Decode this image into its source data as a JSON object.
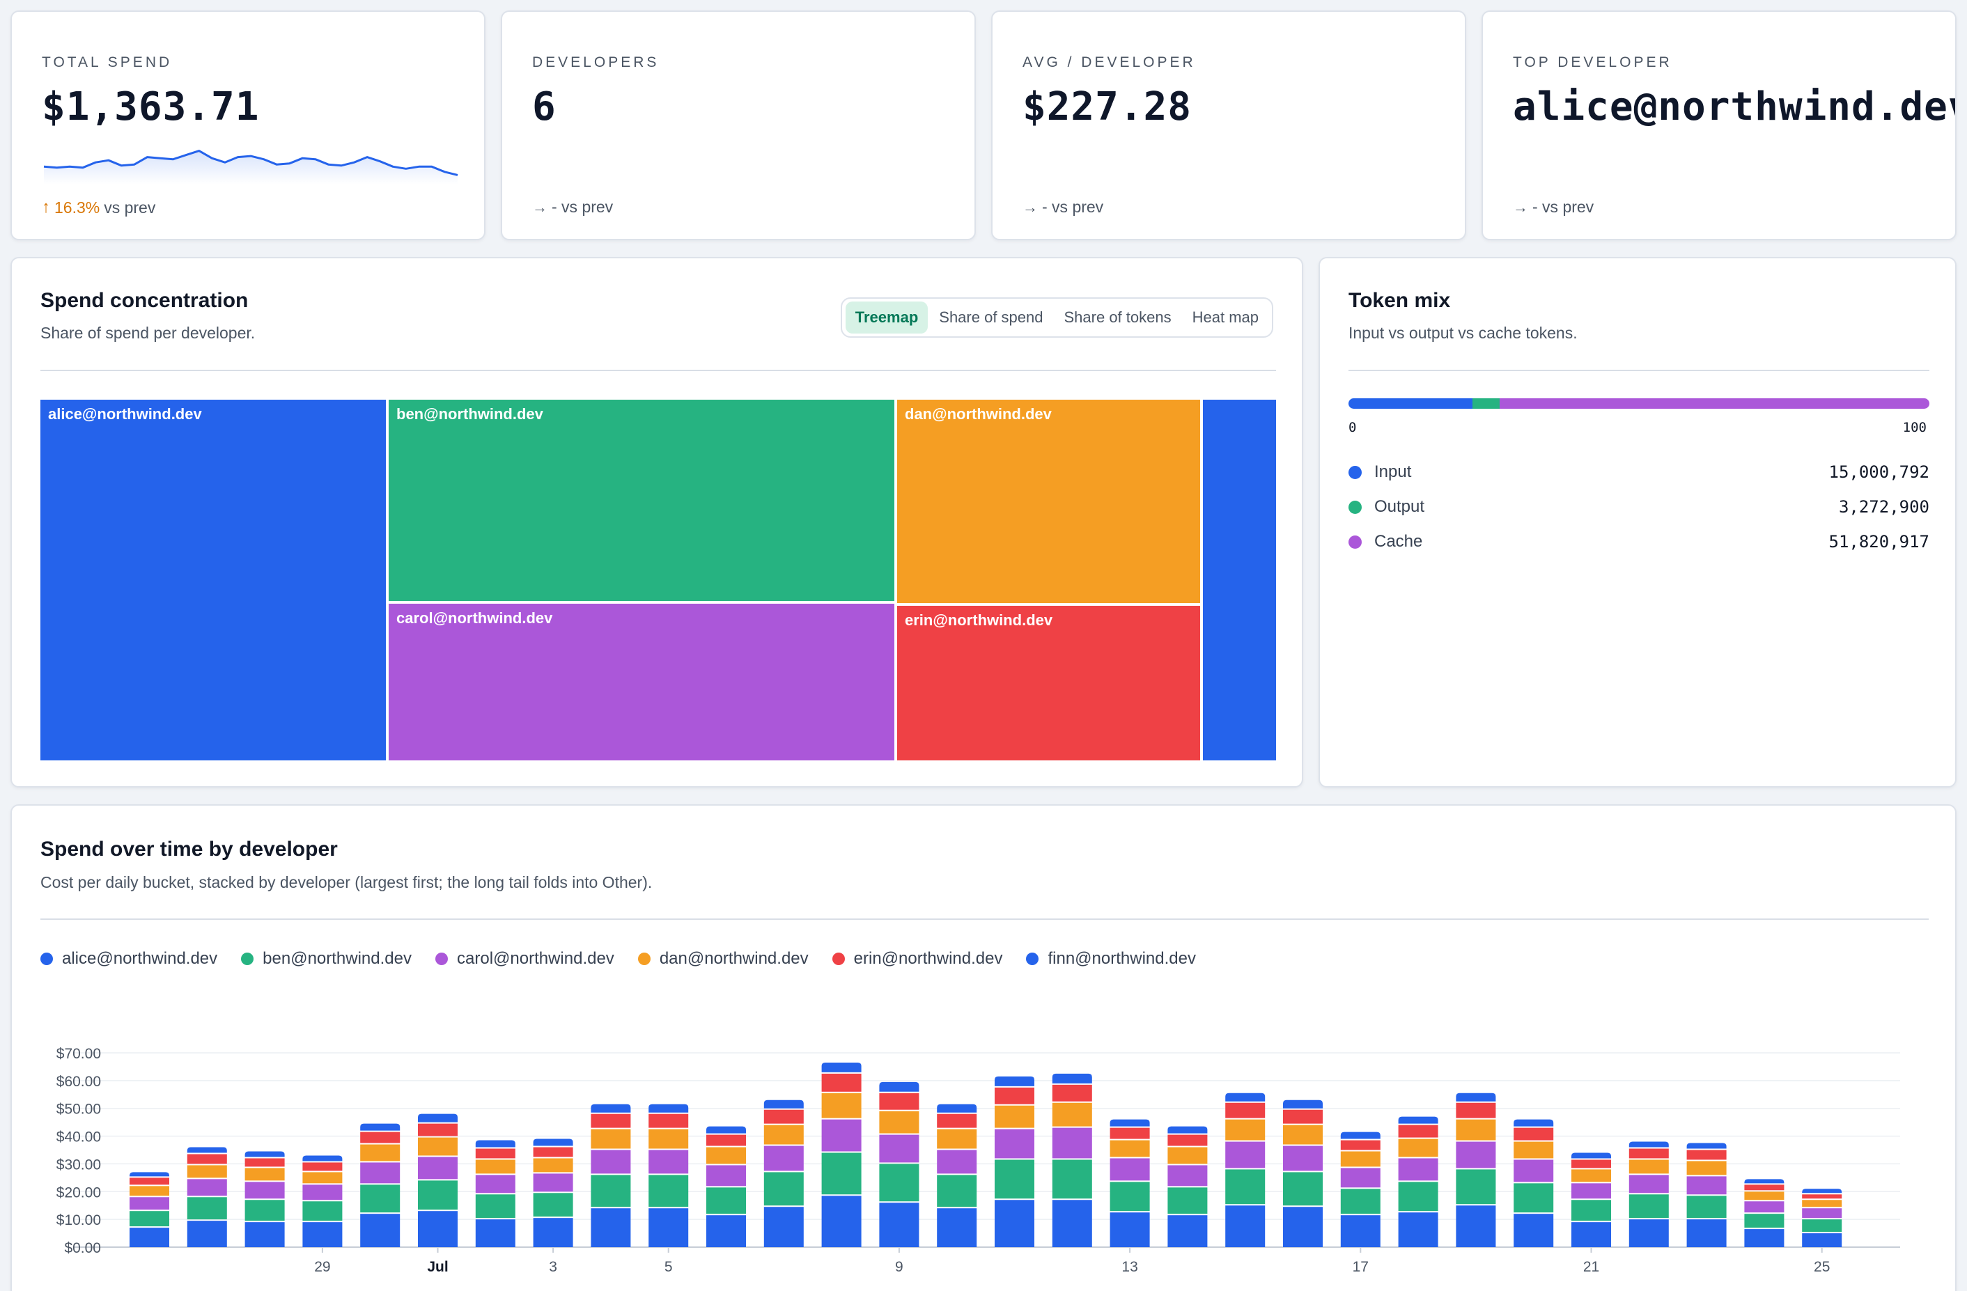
{
  "kpis": [
    {
      "label": "TOTAL SPEND",
      "value": "$1,363.71",
      "delta_pct": "16.3%",
      "delta_text": "vs prev",
      "trend": "up"
    },
    {
      "label": "DEVELOPERS",
      "value": "6",
      "delta_text": "- vs prev",
      "trend": "flat"
    },
    {
      "label": "AVG / DEVELOPER",
      "value": "$227.28",
      "delta_text": "- vs prev",
      "trend": "flat"
    },
    {
      "label": "TOP DEVELOPER",
      "value": "alice@northwind.dev",
      "delta_text": "- vs prev",
      "trend": "flat"
    }
  ],
  "sparkline": [
    52,
    51,
    52,
    51,
    56,
    58,
    53,
    54,
    61,
    60,
    59,
    63,
    67,
    60,
    56,
    61,
    62,
    59,
    54,
    55,
    60,
    59,
    54,
    53,
    56,
    61,
    57,
    52,
    50,
    52,
    52,
    47,
    44
  ],
  "concentration": {
    "title": "Spend concentration",
    "subtitle": "Share of spend per developer.",
    "tabs": [
      "Treemap",
      "Share of spend",
      "Share of tokens",
      "Heat map"
    ],
    "active_tab": "Treemap",
    "cells": [
      {
        "label": "alice@northwind.dev",
        "color": "#2563eb"
      },
      {
        "label": "ben@northwind.dev",
        "color": "#26b381"
      },
      {
        "label": "carol@northwind.dev",
        "color": "#ab57d9"
      },
      {
        "label": "dan@northwind.dev",
        "color": "#f59e23"
      },
      {
        "label": "erin@northwind.dev",
        "color": "#ef4145"
      },
      {
        "label": "",
        "color": "#2563eb"
      }
    ]
  },
  "token_mix": {
    "title": "Token mix",
    "subtitle": "Input vs output vs cache tokens.",
    "axis_min": "0",
    "axis_max": "100",
    "rows": [
      {
        "name": "Input",
        "value": "15,000,792",
        "amount": 15000792,
        "color": "#2563eb"
      },
      {
        "name": "Output",
        "value": "3,272,900",
        "amount": 3272900,
        "color": "#26b381"
      },
      {
        "name": "Cache",
        "value": "51,820,917",
        "amount": 51820917,
        "color": "#ab57d9"
      }
    ]
  },
  "spend_over_time": {
    "title": "Spend over time by developer",
    "subtitle": "Cost per daily bucket, stacked by developer (largest first; the long tail folds into Other)."
  },
  "chart_data": {
    "type": "bar",
    "stacked": true,
    "categories": [
      "Jun 26",
      "Jun 27",
      "Jun 28",
      "Jun 29",
      "Jun 30",
      "Jul 1",
      "Jul 2",
      "Jul 3",
      "Jul 4",
      "Jul 5",
      "Jul 6",
      "Jul 7",
      "Jul 8",
      "Jul 9",
      "Jul 10",
      "Jul 11",
      "Jul 12",
      "Jul 13",
      "Jul 14",
      "Jul 15",
      "Jul 16",
      "Jul 17",
      "Jul 18",
      "Jul 19",
      "Jul 20",
      "Jul 21",
      "Jul 22",
      "Jul 23",
      "Jul 24",
      "Jul 25"
    ],
    "x_tick_labels": [
      {
        "index": 3,
        "label": "29",
        "bold": false
      },
      {
        "index": 5,
        "label": "Jul",
        "bold": true
      },
      {
        "index": 7,
        "label": "3",
        "bold": false
      },
      {
        "index": 9,
        "label": "5",
        "bold": false
      },
      {
        "index": 13,
        "label": "9",
        "bold": false
      },
      {
        "index": 17,
        "label": "13",
        "bold": false
      },
      {
        "index": 21,
        "label": "17",
        "bold": false
      },
      {
        "index": 25,
        "label": "21",
        "bold": false
      },
      {
        "index": 29,
        "label": "25",
        "bold": false
      }
    ],
    "y_ticks": [
      "$0.00",
      "$10.00",
      "$20.00",
      "$30.00",
      "$40.00",
      "$50.00",
      "$60.00",
      "$70.00"
    ],
    "ylim": [
      0,
      70
    ],
    "grid": true,
    "legend_position": "top-left",
    "series": [
      {
        "name": "alice@northwind.dev",
        "color": "#2563eb",
        "values": [
          7.5,
          10.0,
          9.5,
          9.5,
          12.5,
          13.5,
          10.5,
          11.0,
          14.5,
          14.5,
          12.0,
          15.0,
          19.0,
          16.5,
          14.5,
          17.5,
          17.5,
          13.0,
          12.0,
          15.5,
          15.0,
          12.0,
          13.0,
          15.5,
          12.5,
          9.5,
          10.5,
          10.5,
          7.0,
          5.5
        ]
      },
      {
        "name": "ben@northwind.dev",
        "color": "#26b381",
        "values": [
          6.0,
          8.5,
          8.0,
          7.5,
          10.5,
          11.0,
          9.0,
          9.0,
          12.0,
          12.0,
          10.0,
          12.5,
          15.5,
          14.0,
          12.0,
          14.5,
          14.5,
          11.0,
          10.0,
          13.0,
          12.5,
          9.5,
          11.0,
          13.0,
          11.0,
          8.0,
          9.0,
          8.5,
          5.5,
          5.0
        ]
      },
      {
        "name": "carol@northwind.dev",
        "color": "#ab57d9",
        "values": [
          5.0,
          6.5,
          6.5,
          6.0,
          8.0,
          8.5,
          7.0,
          7.0,
          9.0,
          9.0,
          8.0,
          9.5,
          12.0,
          10.5,
          9.0,
          11.0,
          11.5,
          8.5,
          8.0,
          10.0,
          9.5,
          7.5,
          8.5,
          10.0,
          8.5,
          6.0,
          7.0,
          7.0,
          4.5,
          4.0
        ]
      },
      {
        "name": "dan@northwind.dev",
        "color": "#f59e23",
        "values": [
          4.0,
          5.0,
          5.0,
          4.5,
          6.5,
          7.0,
          5.5,
          5.5,
          7.5,
          7.5,
          6.5,
          7.5,
          9.5,
          8.5,
          7.5,
          8.5,
          9.0,
          6.5,
          6.5,
          8.0,
          7.5,
          6.0,
          7.0,
          8.0,
          6.5,
          5.0,
          5.5,
          5.5,
          3.5,
          3.0
        ]
      },
      {
        "name": "erin@northwind.dev",
        "color": "#ef4145",
        "values": [
          3.0,
          4.0,
          3.5,
          3.5,
          4.5,
          5.0,
          4.0,
          4.0,
          5.5,
          5.5,
          4.5,
          5.5,
          7.0,
          6.5,
          5.5,
          6.5,
          6.5,
          4.5,
          4.5,
          6.0,
          5.5,
          4.0,
          5.0,
          6.0,
          5.0,
          3.5,
          4.0,
          4.0,
          2.5,
          2.0
        ]
      },
      {
        "name": "finn@northwind.dev",
        "color": "#2563eb",
        "values": [
          1.5,
          2.0,
          2.0,
          2.0,
          2.5,
          3.0,
          2.5,
          2.5,
          3.0,
          3.0,
          2.5,
          3.0,
          3.5,
          3.5,
          3.0,
          3.5,
          3.5,
          2.5,
          2.5,
          3.0,
          3.0,
          2.5,
          2.5,
          3.0,
          2.5,
          2.0,
          2.0,
          2.0,
          1.5,
          1.5
        ]
      }
    ]
  }
}
